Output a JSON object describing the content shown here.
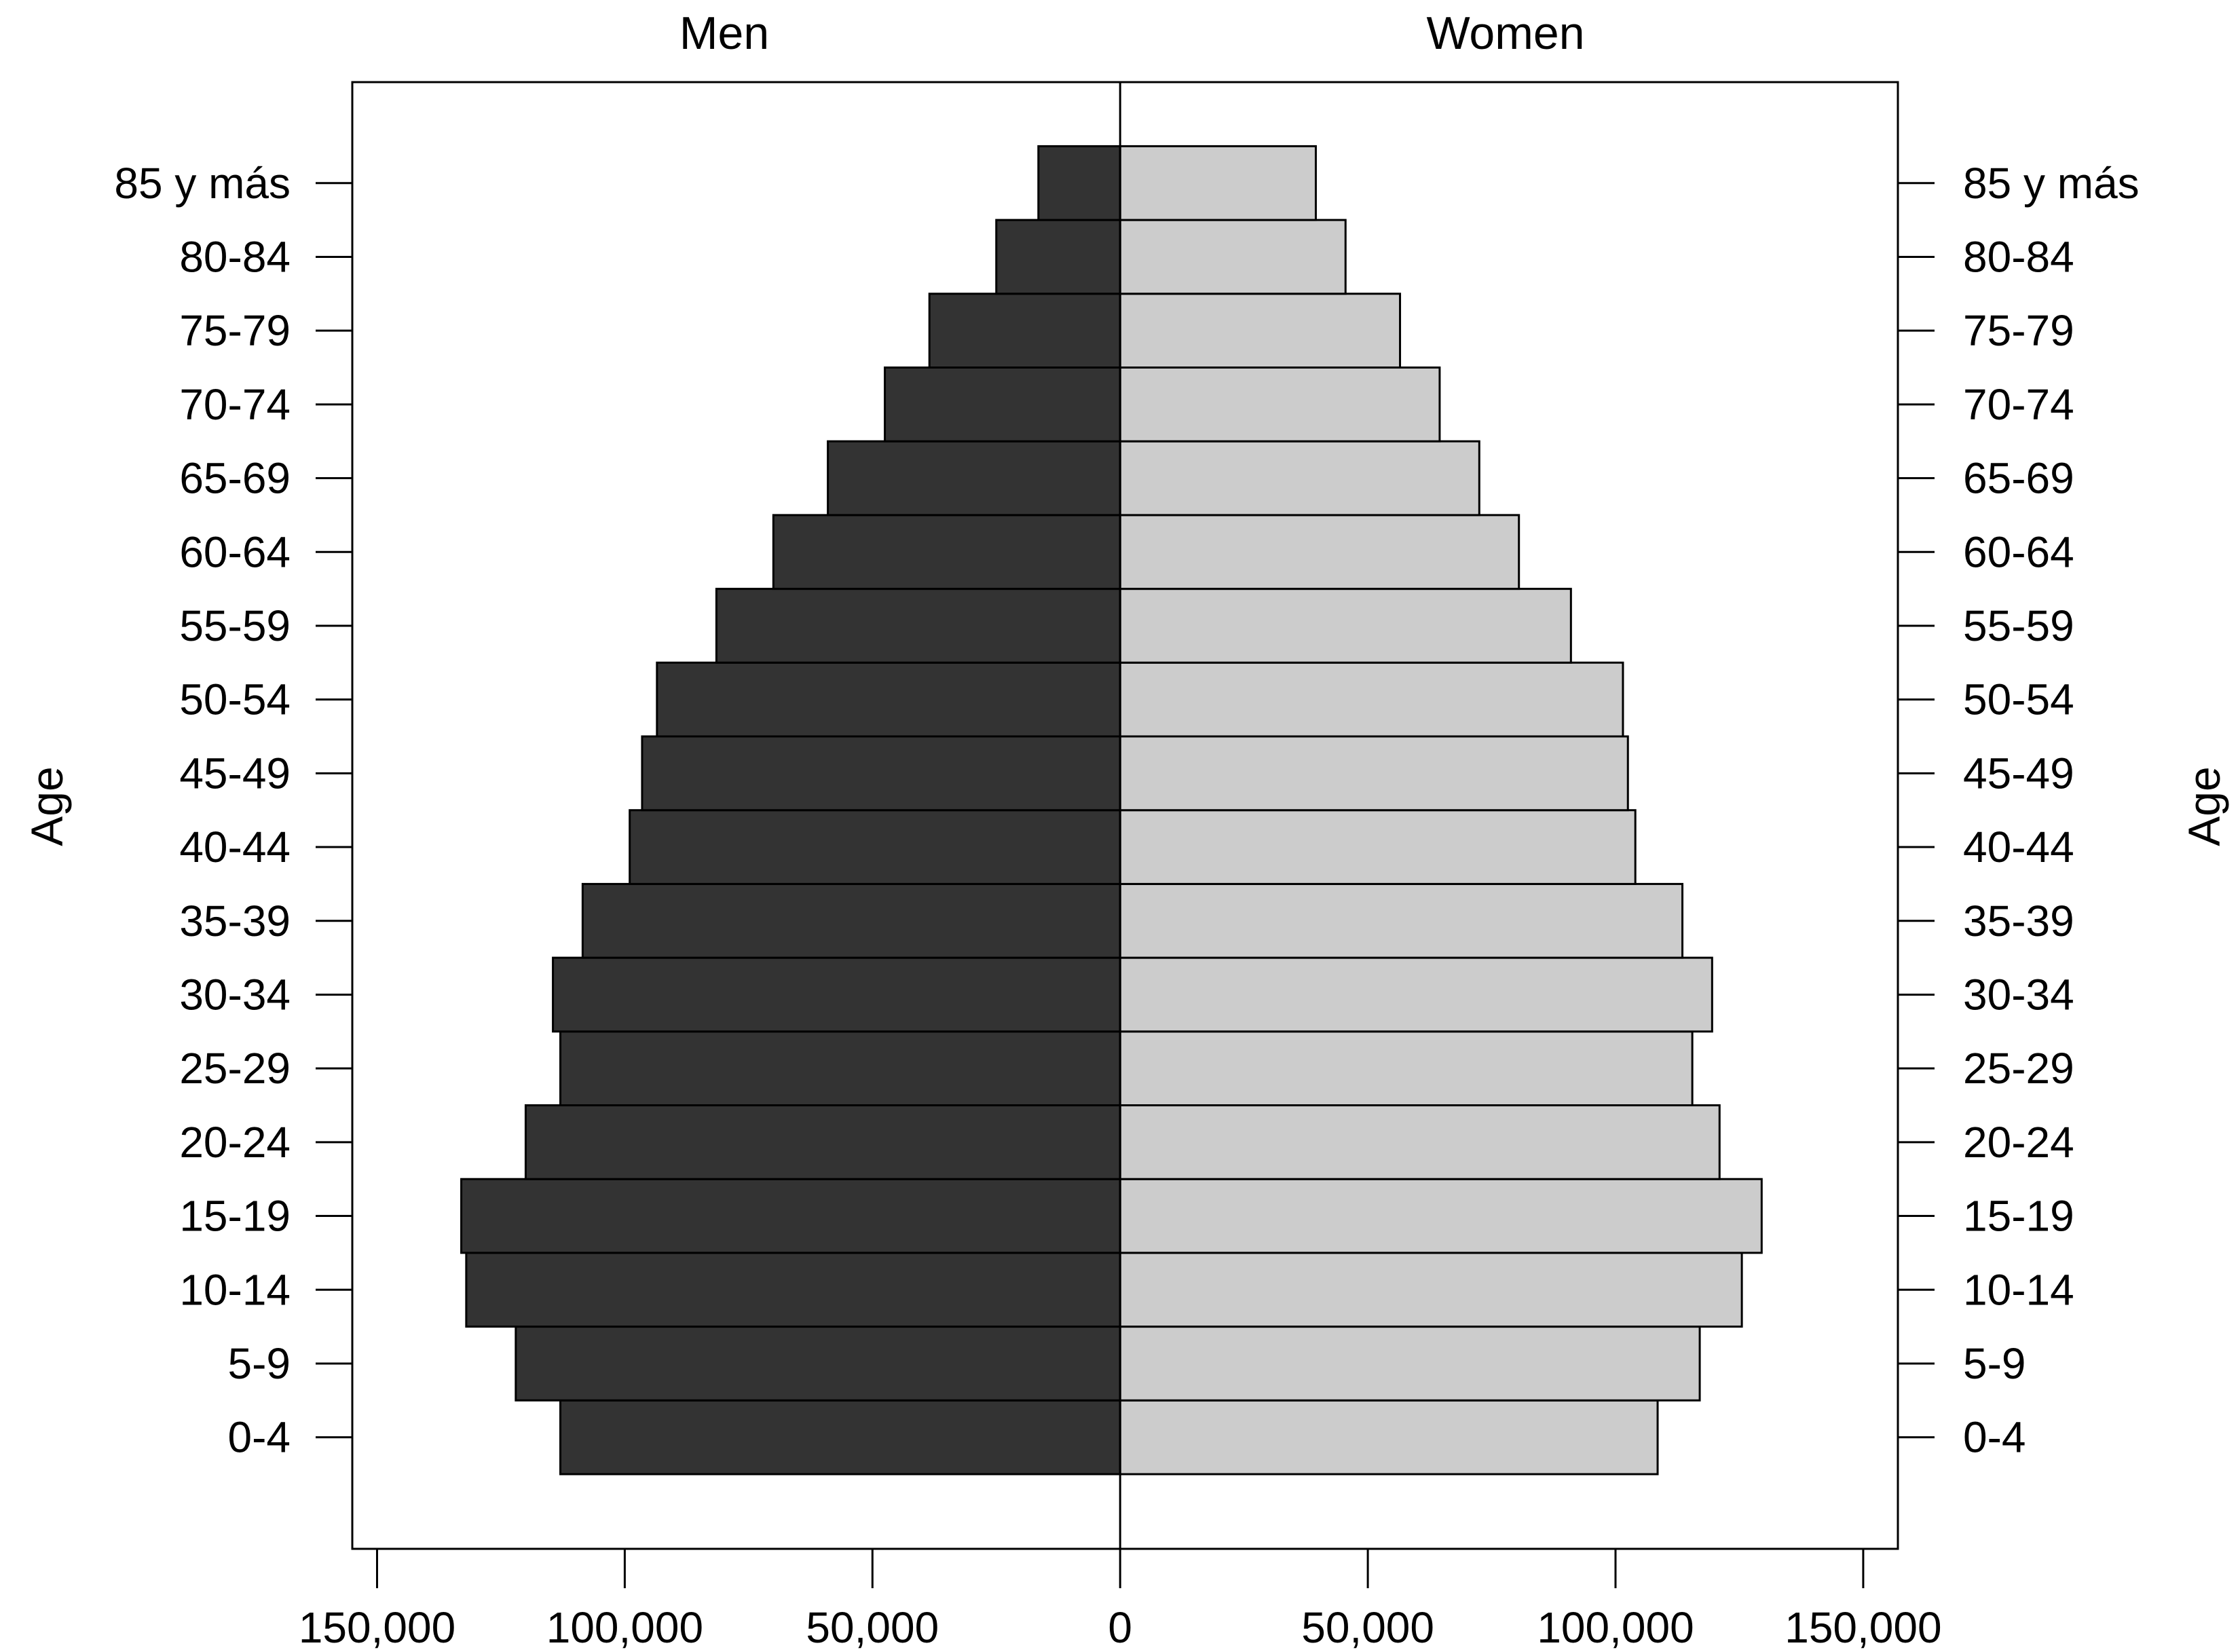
{
  "chart_data": {
    "type": "bar",
    "orientation": "horizontal",
    "style": "population-pyramid",
    "categories": [
      "0-4",
      "5-9",
      "10-14",
      "15-19",
      "20-24",
      "25-29",
      "30-34",
      "35-39",
      "40-44",
      "45-49",
      "50-54",
      "55-59",
      "60-64",
      "65-69",
      "70-74",
      "75-79",
      "80-84",
      "85 y más"
    ],
    "series": [
      {
        "name": "Men",
        "color": "#333333",
        "values": [
          113000,
          122000,
          132000,
          133000,
          120000,
          113000,
          114500,
          108500,
          99000,
          96500,
          93500,
          81500,
          70000,
          59000,
          47500,
          38500,
          25000,
          16500
        ]
      },
      {
        "name": "Women",
        "color": "#cccccc",
        "values": [
          108500,
          117000,
          125500,
          129500,
          121000,
          115500,
          119500,
          113500,
          104000,
          102500,
          101500,
          91000,
          80500,
          72500,
          64500,
          56500,
          45500,
          39500
        ]
      }
    ],
    "x_tick_labels": [
      "150,000",
      "100,000",
      "50,000",
      "0",
      "50,000",
      "100,000",
      "150,000"
    ],
    "x_ticks": [
      -150000,
      -100000,
      -50000,
      0,
      50000,
      100000,
      150000
    ],
    "xlim": [
      -155000,
      157000
    ],
    "ylabel_left": "Age",
    "ylabel_right": "Age",
    "grid": false,
    "legend": "none"
  }
}
